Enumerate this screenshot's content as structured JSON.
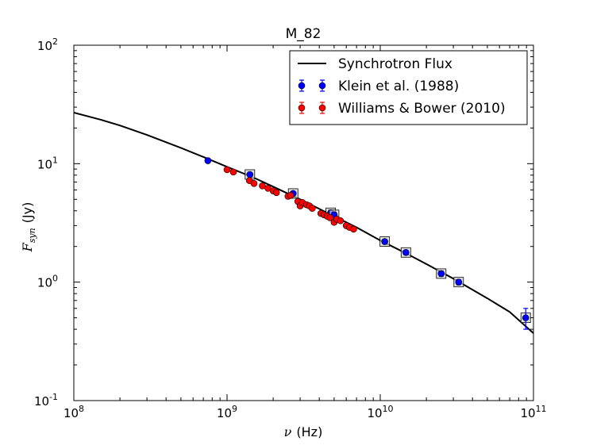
{
  "chart_data": {
    "type": "scatter",
    "title": "M_82",
    "xlabel": {
      "symbol": "ν",
      "unit": "(Hz)"
    },
    "ylabel": {
      "symbol": "F",
      "subscript": "syn",
      "unit": "(Jy)"
    },
    "xscale": "log",
    "yscale": "log",
    "xlim": [
      100000000.0,
      100000000000.0
    ],
    "ylim": [
      0.1,
      100
    ],
    "x_ticks": [
      {
        "value": 100000000.0,
        "base": "10",
        "exp": "8"
      },
      {
        "value": 1000000000.0,
        "base": "10",
        "exp": "9"
      },
      {
        "value": 10000000000.0,
        "base": "10",
        "exp": "10"
      },
      {
        "value": 100000000000.0,
        "base": "10",
        "exp": "11"
      }
    ],
    "y_ticks": [
      {
        "value": 0.1,
        "base": "10",
        "exp": "-1"
      },
      {
        "value": 1,
        "base": "10",
        "exp": "0"
      },
      {
        "value": 10,
        "base": "10",
        "exp": "1"
      },
      {
        "value": 100,
        "base": "10",
        "exp": "2"
      }
    ],
    "legend_position": "top-right",
    "series": [
      {
        "name": "Synchrotron Flux",
        "kind": "line",
        "color": "#000000",
        "x": [
          100000000.0,
          150000000.0,
          200000000.0,
          300000000.0,
          500000000.0,
          700000000.0,
          1000000000.0,
          1500000000.0,
          2000000000.0,
          3000000000.0,
          5000000000.0,
          7000000000.0,
          10000000000.0,
          15000000000.0,
          20000000000.0,
          30000000000.0,
          50000000000.0,
          70000000000.0,
          100000000000.0
        ],
        "y": [
          27,
          23.5,
          21,
          17.5,
          13.6,
          11.4,
          9.4,
          7.6,
          6.4,
          5.0,
          3.6,
          2.9,
          2.25,
          1.73,
          1.42,
          1.07,
          0.73,
          0.56,
          0.37
        ]
      },
      {
        "name": "Klein et al. (1988)",
        "kind": "errorbar",
        "color": "#0000ff",
        "x": [
          750000000.0,
          1410000000.0,
          2700000000.0,
          4750000000.0,
          5000000000.0,
          10700000000.0,
          14700000000.0,
          25000000000.0,
          32500000000.0,
          89000000000.0
        ],
        "y": [
          10.6,
          8.1,
          5.6,
          3.85,
          3.7,
          2.2,
          1.78,
          1.18,
          1.0,
          0.5
        ],
        "yerr": [
          0.4,
          0.35,
          0.25,
          0.2,
          0.2,
          0.1,
          0.08,
          0.06,
          0.05,
          0.1
        ],
        "boxed": [
          false,
          true,
          true,
          true,
          true,
          true,
          true,
          true,
          true,
          true
        ]
      },
      {
        "name": "Williams & Bower (2010)",
        "kind": "errorbar",
        "color": "#ff0000",
        "x": [
          1000000000.0,
          1100000000.0,
          1400000000.0,
          1500000000.0,
          1700000000.0,
          1850000000.0,
          2000000000.0,
          2100000000.0,
          2500000000.0,
          2600000000.0,
          2900000000.0,
          3000000000.0,
          3100000000.0,
          3300000000.0,
          3450000000.0,
          3600000000.0,
          4100000000.0,
          4300000000.0,
          4500000000.0,
          4700000000.0,
          5000000000.0,
          5200000000.0,
          5500000000.0,
          6000000000.0,
          6300000000.0,
          6700000000.0
        ],
        "y": [
          8.9,
          8.5,
          7.2,
          6.8,
          6.5,
          6.2,
          5.9,
          5.7,
          5.3,
          5.4,
          4.8,
          4.4,
          4.7,
          4.5,
          4.4,
          4.2,
          3.8,
          3.7,
          3.6,
          3.5,
          3.2,
          3.4,
          3.3,
          3.0,
          2.9,
          2.8
        ],
        "yerr": [
          0.3,
          0.3,
          0.25,
          0.25,
          0.2,
          0.2,
          0.2,
          0.2,
          0.2,
          0.2,
          0.15,
          0.15,
          0.15,
          0.15,
          0.15,
          0.15,
          0.12,
          0.12,
          0.12,
          0.12,
          0.1,
          0.1,
          0.1,
          0.1,
          0.1,
          0.1
        ]
      }
    ]
  }
}
